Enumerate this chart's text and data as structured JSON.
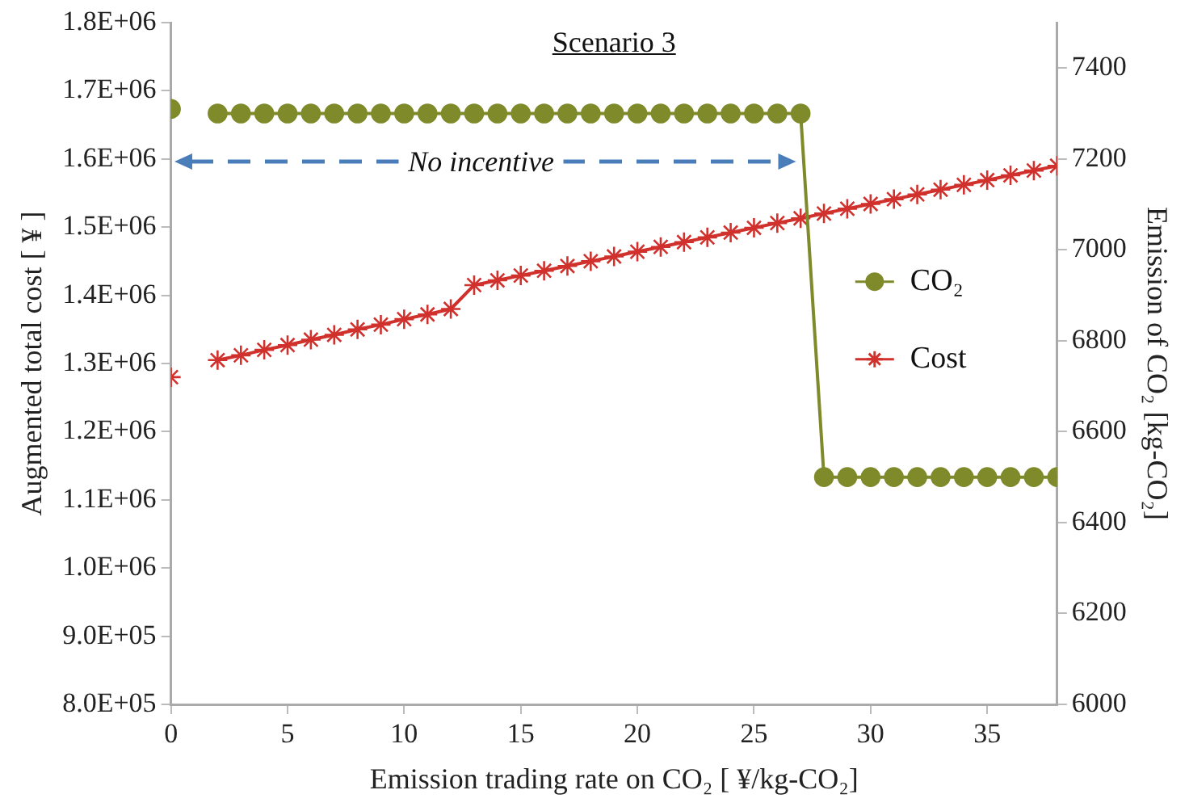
{
  "chart_data": {
    "type": "line",
    "title": "Scenario 3",
    "xlabel": "Emission trading rate on CO₂ [ ¥/kg-CO₂]",
    "ylabel": "Augmented total cost [ ¥ ]",
    "y2label": "Emission of CO₂ [kg-CO₂]",
    "annotations": [
      "No incentive"
    ],
    "x": [
      0,
      1,
      2,
      3,
      4,
      5,
      6,
      7,
      8,
      9,
      10,
      11,
      12,
      13,
      14,
      15,
      16,
      17,
      18,
      19,
      20,
      21,
      22,
      23,
      24,
      25,
      26,
      27,
      28,
      29,
      30,
      31,
      32,
      33,
      34,
      35,
      36,
      37,
      38
    ],
    "series": [
      {
        "name": "CO₂",
        "color": "#7f8a2a",
        "axis": "y2",
        "marker": "circle",
        "values": [
          7310,
          null,
          7300,
          7300,
          7300,
          7300,
          7300,
          7300,
          7300,
          7300,
          7300,
          7300,
          7300,
          7300,
          7300,
          7300,
          7300,
          7300,
          7300,
          7300,
          7300,
          7300,
          7300,
          7300,
          7300,
          7300,
          7300,
          7300,
          6500,
          6500,
          6500,
          6500,
          6500,
          6500,
          6500,
          6500,
          6500,
          6500,
          6500
        ]
      },
      {
        "name": "Cost",
        "color": "#d0312d",
        "axis": "y",
        "marker": "cross",
        "values": [
          1280000,
          null,
          1305000,
          1312000,
          1320000,
          1327000,
          1335000,
          1342000,
          1350000,
          1357000,
          1365000,
          1372000,
          1380000,
          1415000,
          1422000,
          1429000,
          1436000,
          1443000,
          1450000,
          1457000,
          1464000,
          1471000,
          1478000,
          1485000,
          1492000,
          1499000,
          1506000,
          1513000,
          1520000,
          1527000,
          1534000,
          1541000,
          1548000,
          1555000,
          1562000,
          1569000,
          1576000,
          1583000,
          1590000
        ]
      }
    ],
    "xlim": [
      0,
      38
    ],
    "xticks": [
      0,
      5,
      10,
      15,
      20,
      25,
      30,
      35
    ],
    "ylim": [
      800000,
      1800000
    ],
    "yticks": [
      {
        "value": 800000,
        "label": "8.0E+05"
      },
      {
        "value": 900000,
        "label": "9.0E+05"
      },
      {
        "value": 1000000,
        "label": "1.0E+06"
      },
      {
        "value": 1100000,
        "label": "1.1E+06"
      },
      {
        "value": 1200000,
        "label": "1.2E+06"
      },
      {
        "value": 1300000,
        "label": "1.3E+06"
      },
      {
        "value": 1400000,
        "label": "1.4E+06"
      },
      {
        "value": 1500000,
        "label": "1.5E+06"
      },
      {
        "value": 1600000,
        "label": "1.6E+06"
      },
      {
        "value": 1700000,
        "label": "1.7E+06"
      },
      {
        "value": 1800000,
        "label": "1.8E+06"
      }
    ],
    "y2lim": [
      6000,
      7500
    ],
    "y2ticks": [
      6000,
      6200,
      6400,
      6600,
      6800,
      7000,
      7200,
      7400
    ],
    "legend": "right",
    "grid": false
  }
}
